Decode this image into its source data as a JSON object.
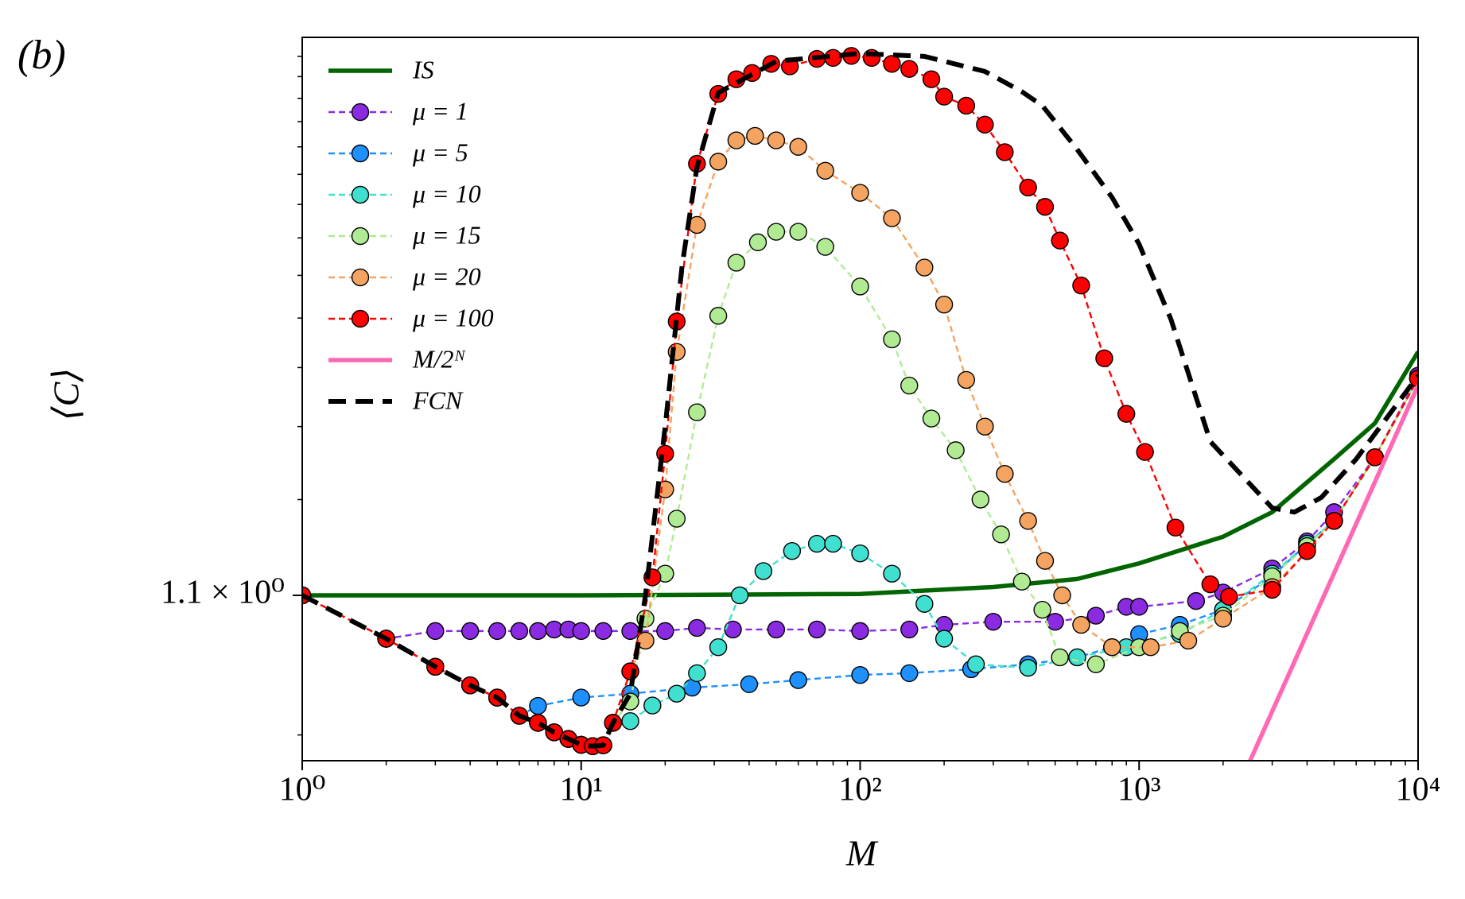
{
  "chart_data": {
    "type": "line",
    "panel_label": "(b)",
    "x_label": "M",
    "y_label": "⟨C⟩",
    "xscale": "log",
    "yscale": "log",
    "xlim": [
      1,
      10000
    ],
    "ylim": [
      0.644,
      6.7
    ],
    "xticks": [
      {
        "value": 1,
        "label": "10⁰"
      },
      {
        "value": 10,
        "label": "10¹"
      },
      {
        "value": 100,
        "label": "10²"
      },
      {
        "value": 1000,
        "label": "10³"
      },
      {
        "value": 10000,
        "label": "10⁴"
      }
    ],
    "xminorticks": [
      2,
      3,
      4,
      5,
      6,
      7,
      8,
      9,
      20,
      30,
      40,
      50,
      60,
      70,
      80,
      90,
      200,
      300,
      400,
      500,
      600,
      700,
      800,
      900,
      2000,
      3000,
      4000,
      5000,
      6000,
      7000,
      8000,
      9000
    ],
    "yticks": [
      {
        "value": 1.1,
        "label": "1.1 × 10⁰"
      }
    ],
    "yminorticks": [
      0.7,
      1.5,
      1.9,
      2.3,
      2.7,
      3.1,
      3.5,
      3.9,
      4.3,
      4.7,
      5.1,
      5.5,
      5.9,
      6.3
    ],
    "legend": "upper left",
    "series": [
      {
        "name": "IS",
        "color": "#006400",
        "style": "solid",
        "marker": false,
        "x": [
          1,
          10,
          100,
          300,
          600,
          1000,
          2000,
          3000,
          5000,
          7000,
          10000
        ],
        "values": [
          1.1,
          1.1,
          1.105,
          1.13,
          1.16,
          1.22,
          1.33,
          1.44,
          1.71,
          1.92,
          2.42
        ]
      },
      {
        "name": "μ = 1",
        "color": "#8a2be2",
        "style": "dashed",
        "marker": true,
        "x": [
          1,
          2,
          3,
          4,
          5,
          6,
          7,
          8,
          9,
          10,
          12,
          15,
          20,
          26,
          35,
          50,
          70,
          100,
          150,
          200,
          300,
          500,
          700,
          900,
          1000,
          1600,
          2000,
          3000,
          4000,
          5000,
          7000,
          10000
        ],
        "values": [
          1.1,
          0.956,
          0.98,
          0.98,
          0.98,
          0.98,
          0.98,
          0.985,
          0.985,
          0.98,
          0.98,
          0.98,
          0.98,
          0.99,
          0.985,
          0.985,
          0.985,
          0.98,
          0.985,
          1.0,
          1.01,
          1.01,
          1.03,
          1.06,
          1.06,
          1.08,
          1.11,
          1.2,
          1.31,
          1.44,
          1.72,
          2.24
        ]
      },
      {
        "name": "μ = 5",
        "color": "#1e90ff",
        "style": "dashed",
        "marker": true,
        "x": [
          1,
          2,
          3,
          4,
          5,
          6,
          7,
          10,
          15,
          25,
          40,
          60,
          100,
          150,
          250,
          400,
          600,
          800,
          1000,
          1400,
          2000,
          3000,
          4000,
          5000,
          7000,
          10000
        ],
        "values": [
          1.1,
          0.956,
          0.873,
          0.822,
          0.79,
          0.745,
          0.769,
          0.79,
          0.8,
          0.816,
          0.825,
          0.836,
          0.85,
          0.855,
          0.866,
          0.88,
          0.9,
          0.93,
          0.97,
          1.0,
          1.05,
          1.17,
          1.3,
          1.4,
          1.72,
          2.22
        ]
      },
      {
        "name": "μ = 10",
        "color": "#40e0d0",
        "style": "dashed",
        "marker": true,
        "x": [
          1,
          2,
          3,
          4,
          5,
          6,
          7,
          8,
          9,
          10,
          11,
          12,
          13,
          15,
          18,
          22,
          26,
          31,
          37,
          45,
          57,
          70,
          80,
          100,
          130,
          170,
          200,
          260,
          400,
          600,
          900,
          1400,
          2000,
          3000,
          4000,
          5000,
          7000,
          10000
        ],
        "values": [
          1.1,
          0.956,
          0.873,
          0.822,
          0.79,
          0.745,
          0.728,
          0.706,
          0.691,
          0.678,
          0.675,
          0.677,
          0.728,
          0.732,
          0.77,
          0.8,
          0.855,
          0.93,
          1.1,
          1.19,
          1.27,
          1.3,
          1.3,
          1.26,
          1.18,
          1.07,
          0.956,
          0.88,
          0.87,
          0.9,
          0.93,
          0.97,
          1.05,
          1.18,
          1.3,
          1.4,
          1.72,
          2.22
        ]
      },
      {
        "name": "μ = 15",
        "color": "#b0eb94",
        "style": "dashed",
        "marker": true,
        "x": [
          1,
          2,
          3,
          4,
          5,
          6,
          7,
          8,
          9,
          10,
          11,
          12,
          13,
          15,
          17,
          20,
          22,
          26,
          31,
          36,
          43,
          50,
          60,
          75,
          100,
          130,
          150,
          180,
          220,
          270,
          320,
          380,
          450,
          520,
          700,
          1000,
          1400,
          2000,
          3000,
          4000,
          5000,
          7000,
          10000
        ],
        "values": [
          1.1,
          0.956,
          0.873,
          0.822,
          0.79,
          0.745,
          0.728,
          0.706,
          0.691,
          0.678,
          0.675,
          0.677,
          0.728,
          0.78,
          1.02,
          1.18,
          1.41,
          1.99,
          2.72,
          3.23,
          3.45,
          3.57,
          3.57,
          3.4,
          2.99,
          2.52,
          2.17,
          1.95,
          1.76,
          1.5,
          1.34,
          1.15,
          1.05,
          0.9,
          0.88,
          0.93,
          0.98,
          1.03,
          1.17,
          1.29,
          1.4,
          1.72,
          2.22
        ]
      },
      {
        "name": "μ = 20",
        "color": "#f4a460",
        "style": "dashed",
        "marker": true,
        "x": [
          1,
          2,
          3,
          4,
          5,
          6,
          7,
          8,
          9,
          10,
          11,
          12,
          13,
          15,
          17,
          20,
          22,
          26,
          31,
          36,
          42,
          50,
          60,
          75,
          100,
          130,
          170,
          200,
          240,
          280,
          330,
          400,
          460,
          530,
          620,
          800,
          1100,
          1500,
          2000,
          3000,
          4000,
          5000,
          7000,
          10000
        ],
        "values": [
          1.1,
          0.956,
          0.873,
          0.822,
          0.79,
          0.745,
          0.728,
          0.706,
          0.691,
          0.678,
          0.675,
          0.677,
          0.728,
          0.86,
          0.95,
          1.55,
          2.42,
          3.65,
          4.48,
          4.8,
          4.87,
          4.8,
          4.7,
          4.35,
          4.05,
          3.73,
          3.18,
          2.82,
          2.21,
          1.9,
          1.63,
          1.4,
          1.23,
          1.1,
          1.0,
          0.93,
          0.93,
          0.95,
          1.02,
          1.13,
          1.27,
          1.4,
          1.72,
          2.22
        ]
      },
      {
        "name": "μ = 100",
        "color": "#ff0000",
        "style": "dashed",
        "marker": true,
        "x": [
          1,
          2,
          3,
          4,
          5,
          6,
          7,
          8,
          9,
          10,
          11,
          12,
          13,
          15,
          18,
          20,
          22,
          26,
          31,
          36,
          41,
          48,
          56,
          70,
          80,
          93,
          110,
          130,
          150,
          180,
          200,
          240,
          280,
          330,
          400,
          460,
          520,
          620,
          750,
          900,
          1050,
          1350,
          1800,
          2100,
          3000,
          4000,
          5000,
          7000,
          10000
        ],
        "values": [
          1.1,
          0.956,
          0.873,
          0.822,
          0.79,
          0.745,
          0.728,
          0.706,
          0.691,
          0.678,
          0.675,
          0.677,
          0.728,
          0.86,
          1.166,
          1.74,
          2.67,
          4.45,
          5.58,
          5.85,
          5.97,
          6.15,
          6.1,
          6.25,
          6.27,
          6.31,
          6.27,
          6.15,
          6.05,
          5.85,
          5.53,
          5.37,
          5.05,
          4.62,
          4.12,
          3.87,
          3.47,
          3.0,
          2.37,
          1.98,
          1.75,
          1.37,
          1.14,
          1.095,
          1.12,
          1.27,
          1.4,
          1.72,
          2.22
        ]
      },
      {
        "name": "M/2ᴺ",
        "color": "#ff69b4",
        "style": "solid",
        "marker": false,
        "x": [
          2500,
          10000
        ],
        "values": [
          0.644,
          2.17
        ]
      },
      {
        "name": "FCN",
        "color": "#000000",
        "style": "bolddash",
        "marker": false,
        "x": [
          1,
          2,
          3,
          4,
          5,
          6,
          7,
          8,
          9,
          10,
          11,
          12,
          13,
          15,
          17,
          20,
          23,
          26,
          31,
          50,
          100,
          170,
          280,
          380,
          450,
          600,
          800,
          1000,
          1300,
          1800,
          3000,
          3600,
          4500,
          6000,
          10000
        ],
        "values": [
          1.1,
          0.956,
          0.873,
          0.822,
          0.79,
          0.745,
          0.728,
          0.706,
          0.691,
          0.678,
          0.675,
          0.677,
          0.728,
          0.8,
          1.1,
          1.9,
          3.2,
          4.4,
          5.6,
          6.2,
          6.36,
          6.3,
          6.0,
          5.62,
          5.37,
          4.66,
          3.99,
          3.43,
          2.69,
          1.81,
          1.46,
          1.44,
          1.51,
          1.71,
          2.24
        ]
      }
    ]
  }
}
